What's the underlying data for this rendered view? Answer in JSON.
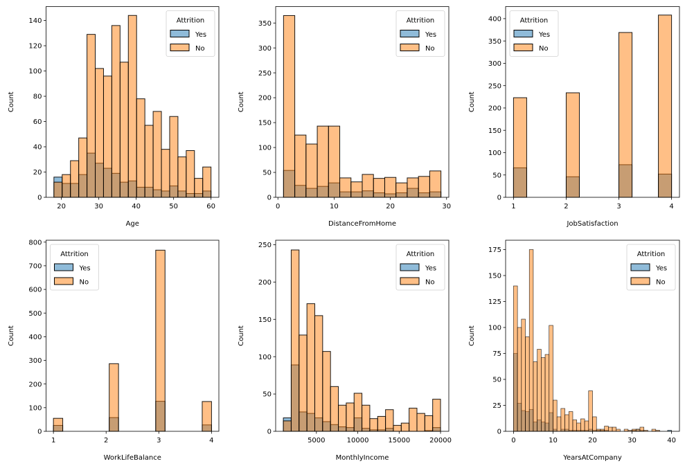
{
  "figure": {
    "hue_variable": "Attrition",
    "colors": {
      "Yes": "#1f77b4",
      "No": "#ff7f0e",
      "overlap": "#8f9a9c"
    }
  },
  "chart_data": [
    {
      "type": "bar",
      "subtype": "histogram-overlay",
      "title": "",
      "xlabel": "Age",
      "ylabel": "Count",
      "xlim": [
        15.9,
        62.1
      ],
      "ylim": [
        0,
        151
      ],
      "xticks": [
        20,
        30,
        40,
        50,
        60
      ],
      "yticks": [
        0,
        20,
        40,
        60,
        80,
        100,
        120,
        140
      ],
      "grid": false,
      "legend": {
        "title": "Attrition",
        "entries": [
          "Yes",
          "No"
        ],
        "placement": "top-right"
      },
      "bin_start": 18,
      "bin_width": 2.2105,
      "series": [
        {
          "name": "Yes",
          "values": [
            16,
            11,
            11,
            18,
            35,
            27,
            23,
            19,
            12,
            13,
            8,
            8,
            6,
            5,
            9,
            5,
            3,
            3,
            5
          ]
        },
        {
          "name": "No",
          "values": [
            12,
            18,
            29,
            47,
            129,
            102,
            96,
            136,
            107,
            144,
            78,
            57,
            68,
            38,
            64,
            32,
            37,
            15,
            24
          ]
        }
      ]
    },
    {
      "type": "bar",
      "subtype": "histogram-overlay",
      "title": "",
      "xlabel": "DistanceFromHome",
      "ylabel": "Count",
      "xlim": [
        -0.4,
        30.4
      ],
      "ylim": [
        0,
        383
      ],
      "xticks": [
        0,
        10,
        20,
        30
      ],
      "yticks": [
        0,
        50,
        100,
        150,
        200,
        250,
        300,
        350
      ],
      "grid": false,
      "legend": {
        "title": "Attrition",
        "entries": [
          "Yes",
          "No"
        ],
        "placement": "top-right"
      },
      "bin_start": 1,
      "bin_width": 2,
      "series": [
        {
          "name": "Yes",
          "values": [
            54,
            24,
            18,
            22,
            29,
            11,
            11,
            13,
            9,
            7,
            9,
            18,
            9,
            11
          ]
        },
        {
          "name": "No",
          "values": [
            365,
            125,
            107,
            143,
            143,
            39,
            31,
            46,
            38,
            40,
            29,
            39,
            42,
            53
          ]
        }
      ]
    },
    {
      "type": "bar",
      "subtype": "histogram-overlay",
      "title": "",
      "xlabel": "JobSatisfaction",
      "ylabel": "Count",
      "xlim": [
        0.85,
        4.15
      ],
      "ylim": [
        0,
        427
      ],
      "xticks": [
        1,
        2,
        3,
        4
      ],
      "yticks": [
        0,
        50,
        100,
        150,
        200,
        250,
        300,
        350,
        400
      ],
      "grid": false,
      "legend": {
        "title": "Attrition",
        "entries": [
          "Yes",
          "No"
        ],
        "placement": "top-left"
      },
      "bin_start": 1,
      "bin_width": 0.25,
      "series": [
        {
          "name": "Yes",
          "values": [
            66,
            0,
            0,
            0,
            46,
            0,
            0,
            0,
            73,
            0,
            0,
            52
          ]
        },
        {
          "name": "No",
          "values": [
            223,
            0,
            0,
            0,
            234,
            0,
            0,
            0,
            369,
            0,
            0,
            408
          ]
        }
      ]
    },
    {
      "type": "bar",
      "subtype": "histogram-overlay",
      "title": "",
      "xlabel": "WorkLifeBalance",
      "ylabel": "Count",
      "xlim": [
        0.86,
        4.14
      ],
      "ylim": [
        0,
        808
      ],
      "xticks": [
        1,
        2,
        3,
        4
      ],
      "yticks": [
        0,
        100,
        200,
        300,
        400,
        500,
        600,
        700,
        800
      ],
      "grid": false,
      "legend": {
        "title": "Attrition",
        "entries": [
          "Yes",
          "No"
        ],
        "placement": "top-left"
      },
      "bin_start": 1,
      "bin_width": 0.1765,
      "series": [
        {
          "name": "Yes",
          "values": [
            25,
            0,
            0,
            0,
            0,
            0,
            58,
            0,
            0,
            0,
            0,
            127,
            0,
            0,
            0,
            0,
            27
          ]
        },
        {
          "name": "No",
          "values": [
            55,
            0,
            0,
            0,
            0,
            0,
            286,
            0,
            0,
            0,
            0,
            766,
            0,
            0,
            0,
            0,
            126
          ]
        }
      ]
    },
    {
      "type": "bar",
      "subtype": "histogram-overlay",
      "title": "",
      "xlabel": "MonthlyIncome",
      "ylabel": "Count",
      "xlim": [
        80,
        21000
      ],
      "ylim": [
        0,
        256
      ],
      "xticks": [
        5000,
        10000,
        15000,
        20000
      ],
      "yticks": [
        0,
        50,
        100,
        150,
        200,
        250
      ],
      "grid": false,
      "legend": {
        "title": "Attrition",
        "entries": [
          "Yes",
          "No"
        ],
        "placement": "top-right"
      },
      "bin_start": 1009,
      "bin_width": 949.5,
      "series": [
        {
          "name": "Yes",
          "values": [
            18,
            89,
            26,
            24,
            18,
            13,
            9,
            6,
            5,
            18,
            4,
            2,
            2,
            4,
            0,
            0,
            0,
            0,
            1,
            5
          ]
        },
        {
          "name": "No",
          "values": [
            14,
            243,
            129,
            171,
            155,
            107,
            60,
            35,
            38,
            51,
            35,
            17,
            20,
            29,
            8,
            11,
            31,
            24,
            21,
            43
          ]
        }
      ]
    },
    {
      "type": "bar",
      "subtype": "histogram-overlay",
      "title": "",
      "xlabel": "YearsAtCompany",
      "ylabel": "Count",
      "xlim": [
        -2,
        42
      ],
      "ylim": [
        0,
        184
      ],
      "xticks": [
        0,
        10,
        20,
        30,
        40
      ],
      "yticks": [
        0,
        25,
        50,
        75,
        100,
        125,
        150,
        175
      ],
      "grid": false,
      "legend": {
        "title": "Attrition",
        "entries": [
          "Yes",
          "No"
        ],
        "placement": "top-right"
      },
      "bin_start": 0,
      "bin_width": 1,
      "series": [
        {
          "name": "Yes",
          "values": [
            75,
            27,
            20,
            19,
            21,
            9,
            11,
            9,
            8,
            18,
            2,
            0,
            2,
            2,
            1,
            1,
            1,
            1,
            1,
            2,
            1,
            1,
            1,
            1,
            0,
            0,
            0,
            0,
            0,
            0,
            1,
            2,
            1,
            0,
            0,
            0,
            0,
            0,
            0,
            1
          ]
        },
        {
          "name": "No",
          "values": [
            140,
            100,
            108,
            91,
            175,
            67,
            79,
            71,
            74,
            102,
            30,
            14,
            22,
            16,
            19,
            11,
            8,
            12,
            10,
            39,
            14,
            2,
            2,
            5,
            4,
            4,
            2,
            0,
            2,
            1,
            2,
            2,
            4,
            1,
            0,
            2,
            1,
            0,
            0,
            0
          ]
        }
      ]
    }
  ]
}
